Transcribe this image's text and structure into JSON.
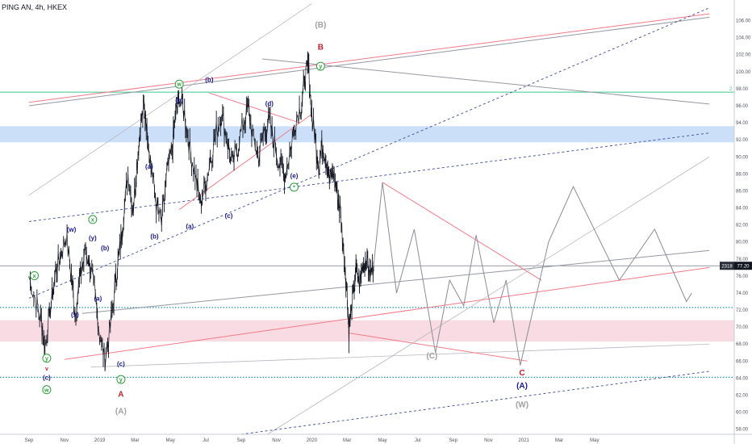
{
  "header": {
    "title": "PING AN, 4h, HKEX"
  },
  "price_badge": {
    "code": "2318",
    "value": "77.20"
  },
  "colors": {
    "bg": "#ffffff",
    "grid_axis": "#d1d4dc",
    "candle": "#131722",
    "blue_zone": "#c6dbf7",
    "pink_zone": "#f8d7e0",
    "teal": "#26a69a",
    "cyan_dotted": "#2196a8",
    "red": "#f07a88",
    "gray": "#9598a1",
    "dashed_blue": "#3f4a9e",
    "label_navy": "#1a1a8c",
    "label_red": "#c0202e",
    "label_green": "#2e9e3a",
    "label_gray": "#a0a0a0"
  },
  "chart_data": {
    "type": "candlestick",
    "title": "PING AN, 4h, HKEX",
    "y_axis": {
      "ticks": [
        "58.00",
        "60.00",
        "62.00",
        "64.00",
        "66.00",
        "68.00",
        "70.00",
        "72.00",
        "74.00",
        "76.00",
        "78.00",
        "80.00",
        "82.00",
        "84.00",
        "86.00",
        "88.00",
        "90.00",
        "92.00",
        "94.00",
        "96.00",
        "98.00",
        "100.00",
        "102.00",
        "104.00",
        "106.00"
      ],
      "range": [
        57.4,
        107.0
      ]
    },
    "x_axis": {
      "ticks": [
        "Sep",
        "Nov",
        "2019",
        "Mar",
        "May",
        "Jul",
        "Sep",
        "Nov",
        "2020",
        "Mar",
        "May",
        "Jul",
        "Sep",
        "Nov",
        "2021",
        "Mar",
        "May"
      ],
      "month_index": [
        0,
        2,
        4,
        6,
        8,
        10,
        12,
        14,
        16,
        18,
        20,
        22,
        24,
        26,
        28,
        30,
        32
      ]
    },
    "price_path": [
      [
        0.0,
        75.8
      ],
      [
        0.4,
        73.0
      ],
      [
        0.7,
        70.5
      ],
      [
        0.9,
        67.5
      ],
      [
        1.2,
        72.0
      ],
      [
        1.5,
        76.5
      ],
      [
        1.8,
        78.5
      ],
      [
        2.1,
        80.8
      ],
      [
        2.4,
        76.0
      ],
      [
        2.6,
        71.6
      ],
      [
        2.9,
        76.0
      ],
      [
        3.2,
        79.0
      ],
      [
        3.5,
        77.0
      ],
      [
        3.8,
        72.5
      ],
      [
        4.0,
        69.0
      ],
      [
        4.3,
        66.2
      ],
      [
        4.6,
        70.0
      ],
      [
        4.9,
        75.5
      ],
      [
        5.1,
        78.5
      ],
      [
        5.3,
        82.0
      ],
      [
        5.6,
        88.0
      ],
      [
        5.9,
        84.0
      ],
      [
        6.1,
        89.0
      ],
      [
        6.3,
        93.5
      ],
      [
        6.5,
        96.0
      ],
      [
        6.7,
        93.0
      ],
      [
        6.9,
        89.0
      ],
      [
        7.2,
        84.5
      ],
      [
        7.5,
        82.0
      ],
      [
        7.8,
        88.0
      ],
      [
        8.1,
        91.0
      ],
      [
        8.3,
        95.0
      ],
      [
        8.5,
        97.3
      ],
      [
        8.8,
        95.0
      ],
      [
        9.1,
        91.0
      ],
      [
        9.4,
        88.0
      ],
      [
        9.7,
        84.5
      ],
      [
        10.0,
        87.0
      ],
      [
        10.3,
        90.0
      ],
      [
        10.6,
        93.0
      ],
      [
        10.9,
        95.0
      ],
      [
        11.2,
        92.0
      ],
      [
        11.5,
        89.0
      ],
      [
        11.8,
        91.0
      ],
      [
        12.1,
        94.0
      ],
      [
        12.4,
        95.5
      ],
      [
        12.7,
        92.0
      ],
      [
        13.0,
        90.0
      ],
      [
        13.3,
        93.0
      ],
      [
        13.6,
        94.0
      ],
      [
        13.9,
        91.5
      ],
      [
        14.2,
        89.0
      ],
      [
        14.5,
        88.0
      ],
      [
        14.8,
        91.0
      ],
      [
        15.1,
        94.5
      ],
      [
        15.4,
        96.0
      ],
      [
        15.6,
        99.0
      ],
      [
        15.8,
        100.7
      ],
      [
        16.0,
        95.0
      ],
      [
        16.2,
        92.0
      ],
      [
        16.4,
        89.0
      ],
      [
        16.6,
        91.5
      ],
      [
        16.8,
        90.0
      ],
      [
        17.0,
        87.0
      ],
      [
        17.2,
        88.5
      ],
      [
        17.4,
        86.0
      ],
      [
        17.6,
        84.0
      ],
      [
        17.8,
        79.0
      ],
      [
        18.0,
        74.0
      ],
      [
        18.1,
        69.5
      ],
      [
        18.3,
        73.0
      ],
      [
        18.5,
        76.5
      ],
      [
        18.7,
        75.0
      ],
      [
        18.9,
        77.5
      ],
      [
        19.1,
        78.2
      ],
      [
        19.3,
        76.0
      ],
      [
        19.5,
        77.2
      ]
    ],
    "projection_path": [
      [
        19.5,
        77.2
      ],
      [
        20.0,
        87.0
      ],
      [
        20.8,
        74.0
      ],
      [
        21.8,
        81.5
      ],
      [
        23.0,
        67.0
      ],
      [
        23.8,
        75.5
      ],
      [
        24.6,
        72.5
      ],
      [
        25.3,
        80.8
      ],
      [
        26.3,
        70.5
      ],
      [
        27.0,
        75.5
      ],
      [
        27.8,
        65.5
      ],
      [
        29.4,
        80.0
      ],
      [
        30.8,
        86.5
      ],
      [
        33.4,
        75.5
      ],
      [
        35.4,
        81.5
      ],
      [
        37.2,
        73.0
      ],
      [
        37.5,
        74.0
      ]
    ],
    "zones": [
      {
        "name": "blue-resistance",
        "y1": 91.7,
        "y2": 93.6
      },
      {
        "name": "pink-support",
        "y1": 68.3,
        "y2": 70.8
      }
    ],
    "horizontal_lines": [
      {
        "name": "teal-line",
        "y": 97.6,
        "label": "2"
      },
      {
        "name": "cyan-dotted-upper",
        "y": 72.3
      },
      {
        "name": "cyan-dotted-lower",
        "y": 64.1
      },
      {
        "name": "current-price",
        "y": 77.2
      }
    ],
    "wave_labels": [
      {
        "text": "(B)",
        "x": 16.5,
        "y": 105.2,
        "kind": "gray-large"
      },
      {
        "text": "B",
        "x": 16.5,
        "y": 102.6,
        "kind": "red"
      },
      {
        "text": "y",
        "x": 16.5,
        "y": 100.4,
        "kind": "green-circle"
      },
      {
        "text": "w",
        "x": 8.5,
        "y": 98.3,
        "kind": "green-circle"
      },
      {
        "text": "(b)",
        "x": 10.2,
        "y": 98.8,
        "kind": "navy"
      },
      {
        "text": "(c)",
        "x": 8.5,
        "y": 96.4,
        "kind": "navy"
      },
      {
        "text": "(d)",
        "x": 13.6,
        "y": 96.0,
        "kind": "navy"
      },
      {
        "text": "(a)",
        "x": 6.8,
        "y": 88.6,
        "kind": "navy"
      },
      {
        "text": "(b)",
        "x": 7.1,
        "y": 80.4,
        "kind": "navy"
      },
      {
        "text": "(a)",
        "x": 9.1,
        "y": 81.6,
        "kind": "navy"
      },
      {
        "text": "(c)",
        "x": 11.3,
        "y": 82.8,
        "kind": "navy"
      },
      {
        "text": "(e)",
        "x": 15.0,
        "y": 87.5,
        "kind": "navy"
      },
      {
        "text": "*",
        "x": 15.0,
        "y": 86.2,
        "kind": "green-circle"
      },
      {
        "text": "x",
        "x": 3.6,
        "y": 82.4,
        "kind": "green-circle"
      },
      {
        "text": "(w)",
        "x": 2.4,
        "y": 81.2,
        "kind": "navy"
      },
      {
        "text": "(y)",
        "x": 3.6,
        "y": 80.2,
        "kind": "navy"
      },
      {
        "text": "(b)",
        "x": 4.3,
        "y": 79.0,
        "kind": "navy"
      },
      {
        "text": "(a)",
        "x": 3.9,
        "y": 73.1,
        "kind": "navy"
      },
      {
        "text": "(x)",
        "x": 2.6,
        "y": 71.2,
        "kind": "navy"
      },
      {
        "text": "x",
        "x": 0.3,
        "y": 75.8,
        "kind": "green-circle"
      },
      {
        "text": "y",
        "x": 1.0,
        "y": 66.1,
        "kind": "green-circle"
      },
      {
        "text": "v",
        "x": 1.0,
        "y": 64.9,
        "kind": "red-small"
      },
      {
        "text": "(c)",
        "x": 1.0,
        "y": 63.8,
        "kind": "navy"
      },
      {
        "text": "w",
        "x": 1.0,
        "y": 62.4,
        "kind": "green-circle"
      },
      {
        "text": "(c)",
        "x": 5.2,
        "y": 65.4,
        "kind": "navy"
      },
      {
        "text": "y",
        "x": 5.2,
        "y": 63.6,
        "kind": "green-circle"
      },
      {
        "text": "A",
        "x": 5.2,
        "y": 61.8,
        "kind": "red"
      },
      {
        "text": "(A)",
        "x": 5.2,
        "y": 59.8,
        "kind": "gray-large"
      },
      {
        "text": "(C)",
        "x": 22.8,
        "y": 66.3,
        "kind": "gray-large"
      },
      {
        "text": "C",
        "x": 27.9,
        "y": 64.3,
        "kind": "red"
      },
      {
        "text": "(A)",
        "x": 27.9,
        "y": 62.8,
        "kind": "navy-large"
      },
      {
        "text": "(W)",
        "x": 27.9,
        "y": 60.6,
        "kind": "gray-large"
      }
    ],
    "trendlines": [
      {
        "name": "red-upper-channel",
        "x1": 0,
        "y1": 96.4,
        "x2": 38.5,
        "y2": 106.8,
        "style": "red"
      },
      {
        "name": "gray-upper-channel",
        "x1": 0,
        "y1": 96.0,
        "x2": 38.5,
        "y2": 106.4,
        "style": "gray"
      },
      {
        "name": "gray-descending-top",
        "x1": 13.2,
        "y1": 101.5,
        "x2": 38.5,
        "y2": 96.2,
        "style": "gray"
      },
      {
        "name": "gray-thin-diagonal",
        "x1": 0,
        "y1": 85.5,
        "x2": 16.0,
        "y2": 108.0,
        "style": "gray-light"
      },
      {
        "name": "gray-long-diagonal",
        "x1": 13.5,
        "y1": 57.4,
        "x2": 38.5,
        "y2": 90.0,
        "style": "gray-light"
      },
      {
        "name": "blue-dashed-steep",
        "x1": 0,
        "y1": 73.4,
        "x2": 38.5,
        "y2": 107.5,
        "style": "dashed"
      },
      {
        "name": "blue-dashed-mid",
        "x1": 0,
        "y1": 82.4,
        "x2": 38.5,
        "y2": 92.8,
        "style": "dashed"
      },
      {
        "name": "blue-dashed-bottom",
        "x1": 12.0,
        "y1": 57.4,
        "x2": 38.5,
        "y2": 64.8,
        "style": "dashed"
      },
      {
        "name": "red-mid-channel",
        "x1": 2.0,
        "y1": 66.2,
        "x2": 38.5,
        "y2": 77.0,
        "style": "red"
      },
      {
        "name": "gray-mid-channel",
        "x1": 3.0,
        "y1": 71.6,
        "x2": 38.5,
        "y2": 79.0,
        "style": "gray"
      },
      {
        "name": "gray-lower-channel",
        "x1": 3.5,
        "y1": 65.3,
        "x2": 38.5,
        "y2": 68.0,
        "style": "gray-light"
      },
      {
        "name": "red-triangle-upper",
        "x1": 10.2,
        "y1": 97.5,
        "x2": 15.3,
        "y2": 94.0,
        "style": "red"
      },
      {
        "name": "red-triangle-lower",
        "x1": 8.5,
        "y1": 83.8,
        "x2": 16.0,
        "y2": 95.0,
        "style": "red"
      },
      {
        "name": "red-projection-down",
        "x1": 20.0,
        "y1": 87.0,
        "x2": 29.0,
        "y2": 75.5,
        "style": "red"
      },
      {
        "name": "red-projection-low",
        "x1": 18.1,
        "y1": 69.3,
        "x2": 28.2,
        "y2": 66.0,
        "style": "red"
      }
    ]
  }
}
